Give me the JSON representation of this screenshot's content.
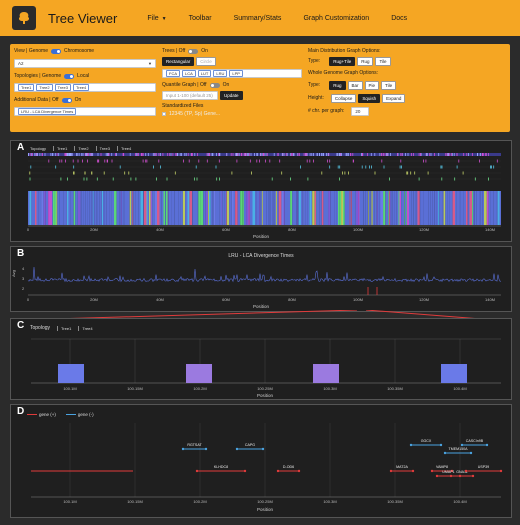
{
  "app": {
    "title": "Tree Viewer"
  },
  "nav": {
    "file": "File",
    "toolbar": "Toolbar",
    "summary": "Summary/Stats",
    "graph": "Graph Customization",
    "docs": "Docs"
  },
  "controls": {
    "view_label": "View | Genome",
    "chromosome_label": "Chromosome",
    "chromosome_value": "A2",
    "topologies_label": "Topologies | Genome",
    "local_label": "Local",
    "topology_chips": [
      "Tree1",
      "Tree2",
      "Tree3",
      "Tree4"
    ],
    "additional_label": "Additional Data | Off",
    "additional_on": "On",
    "additional_value": "LRU - LCA Divergence Times",
    "trees_label": "Trees | Off",
    "trees_on": "On",
    "tree_style_rect": "Rectangular",
    "tree_style_circ": "Circle",
    "tree_chips": [
      "FCA",
      "LCA",
      "LUT",
      "LRU",
      "LPP"
    ],
    "quantile_label": "Quantile Graph | Off",
    "quantile_on": "On",
    "quantile_placeholder": "Input 1-100 (default 25)",
    "update_label": "Update",
    "standardized_label": "Standardized Files",
    "standardized_checkbox": "12345 (TP, Sp) Gene...",
    "dist_label": "Main Distribution Graph Options:",
    "type_label": "Type:",
    "dist_types": [
      "Rug+Tile",
      "Rug",
      "Tile"
    ],
    "whole_label": "Whole Genome Graph Options:",
    "whole_types": [
      "Rug",
      "Bar",
      "Pie",
      "Tile"
    ],
    "height_label": "Height:",
    "height_options": [
      "Collapse",
      "Squish",
      "Expand"
    ],
    "chr_label": "# chr. per graph:",
    "chr_value": "20"
  },
  "panelA": {
    "letter": "A",
    "tabs": [
      "Topology",
      "Tree1",
      "Tree2",
      "Tree3",
      "Tree4"
    ],
    "ticks": [
      "0",
      "20M",
      "40M",
      "60M",
      "80M",
      "100M",
      "120M",
      "140M"
    ],
    "xlabel": "Position"
  },
  "panelB": {
    "letter": "B",
    "title": "LRU - LCA Divergence Times",
    "ylabel": "Avg",
    "yticks": [
      "4",
      "3",
      "2"
    ],
    "ticks": [
      "0",
      "20M",
      "40M",
      "60M",
      "80M",
      "100M",
      "120M",
      "140M"
    ],
    "xlabel": "Position"
  },
  "panelC": {
    "letter": "C",
    "tabs": [
      "Topology",
      "Tree1",
      "Tree4"
    ],
    "ticks": [
      "100.1M",
      "100.15M",
      "100.2M",
      "100.25M",
      "100.3M",
      "100.35M",
      "100.4M"
    ],
    "xlabel": "Position"
  },
  "panelD": {
    "letter": "D",
    "legend_plus": "gene (+)",
    "legend_minus": "gene (-)",
    "ticks": [
      "100.1M",
      "100.15M",
      "100.2M",
      "100.25M",
      "100.3M",
      "100.35M",
      "100.4M"
    ],
    "xlabel": "Position",
    "genes": [
      {
        "name": "RGTSAT",
        "strand": "-"
      },
      {
        "name": "CAPG",
        "strand": "-"
      },
      {
        "name": "KLHDC8",
        "strand": "+"
      },
      {
        "name": "D-OD6",
        "strand": "+"
      },
      {
        "name": "GGCX",
        "strand": "-"
      },
      {
        "name": "CASCIn9B",
        "strand": "-"
      },
      {
        "name": "TMEM150A",
        "strand": "-"
      },
      {
        "name": "MAT2A",
        "strand": "+"
      },
      {
        "name": "VAMP8",
        "strand": "+"
      },
      {
        "name": "UMAP1",
        "strand": "+"
      },
      {
        "name": "GNA11",
        "strand": "+"
      },
      {
        "name": "USP39",
        "strand": "+"
      }
    ]
  },
  "colors": {
    "accent": "#f5a623",
    "plus": "#e03b3b",
    "minus": "#4aa3e0",
    "line": "#5a6fd6"
  }
}
